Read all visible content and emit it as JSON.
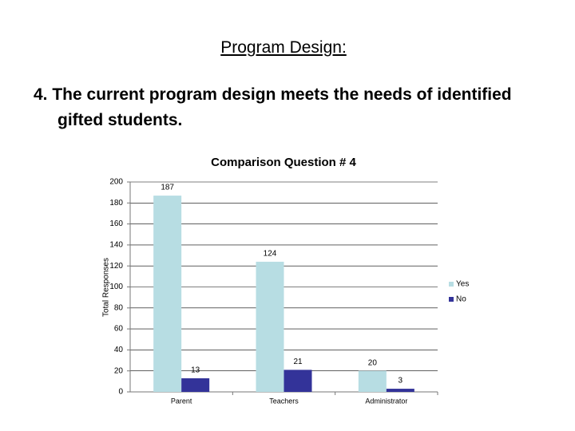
{
  "header": {
    "title": "Program Design:"
  },
  "question": "4. The current program design meets the needs of identified gifted students.",
  "chart_data": {
    "type": "bar",
    "title": "Comparison Question # 4",
    "y_label": "Total Responses",
    "categories": [
      "Parent",
      "Teachers",
      "Administrator"
    ],
    "series": [
      {
        "name": "Yes",
        "color": "#b7dde3",
        "values": [
          187,
          124,
          20
        ]
      },
      {
        "name": "No",
        "color": "#333399",
        "values": [
          13,
          21,
          3
        ]
      }
    ],
    "ylim": [
      0,
      200
    ],
    "yticks": [
      0,
      20,
      40,
      60,
      80,
      100,
      120,
      140,
      160,
      180,
      200
    ],
    "grid": true,
    "legend": "right"
  }
}
